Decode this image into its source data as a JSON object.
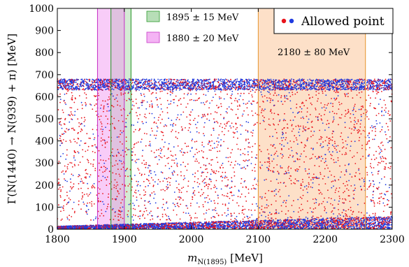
{
  "chart_data": {
    "type": "scatter",
    "xlabel": "m_N(1895) [MeV]",
    "ylabel": "Γ(N(1440) → N(939) + π) [MeV]",
    "xlim": [
      1800,
      2300
    ],
    "ylim": [
      0,
      1000
    ],
    "x_ticks": [
      "1800",
      "1900",
      "2000",
      "2100",
      "2200",
      "2300"
    ],
    "y_ticks": [
      "0",
      "100",
      "200",
      "300",
      "400",
      "500",
      "600",
      "700",
      "800",
      "900",
      "1000"
    ],
    "grid": false,
    "legend_position": "top-right",
    "legend_label": "Allowed point",
    "series_colors": [
      "#e8131b",
      "#1f3be0"
    ],
    "series_description": "dense band of allowed points at 0–40 MeV across full range; dense band near 640–680 MeV; sparse scatter between 50 and 640 MeV",
    "bands": [
      {
        "label": "1895 ± 15 MeV",
        "center": 1895,
        "half_width": 15,
        "fill": "#9fd39f",
        "edge": "#2e9a2e"
      },
      {
        "label": "1880 ± 20 MeV",
        "center": 1880,
        "half_width": 20,
        "fill": "#f08ff0",
        "edge": "#c83ac8"
      },
      {
        "label": "2180 ± 80 MeV",
        "center": 2180,
        "half_width": 80,
        "fill": "#fcc79a",
        "edge": "#e79a3a"
      }
    ]
  }
}
